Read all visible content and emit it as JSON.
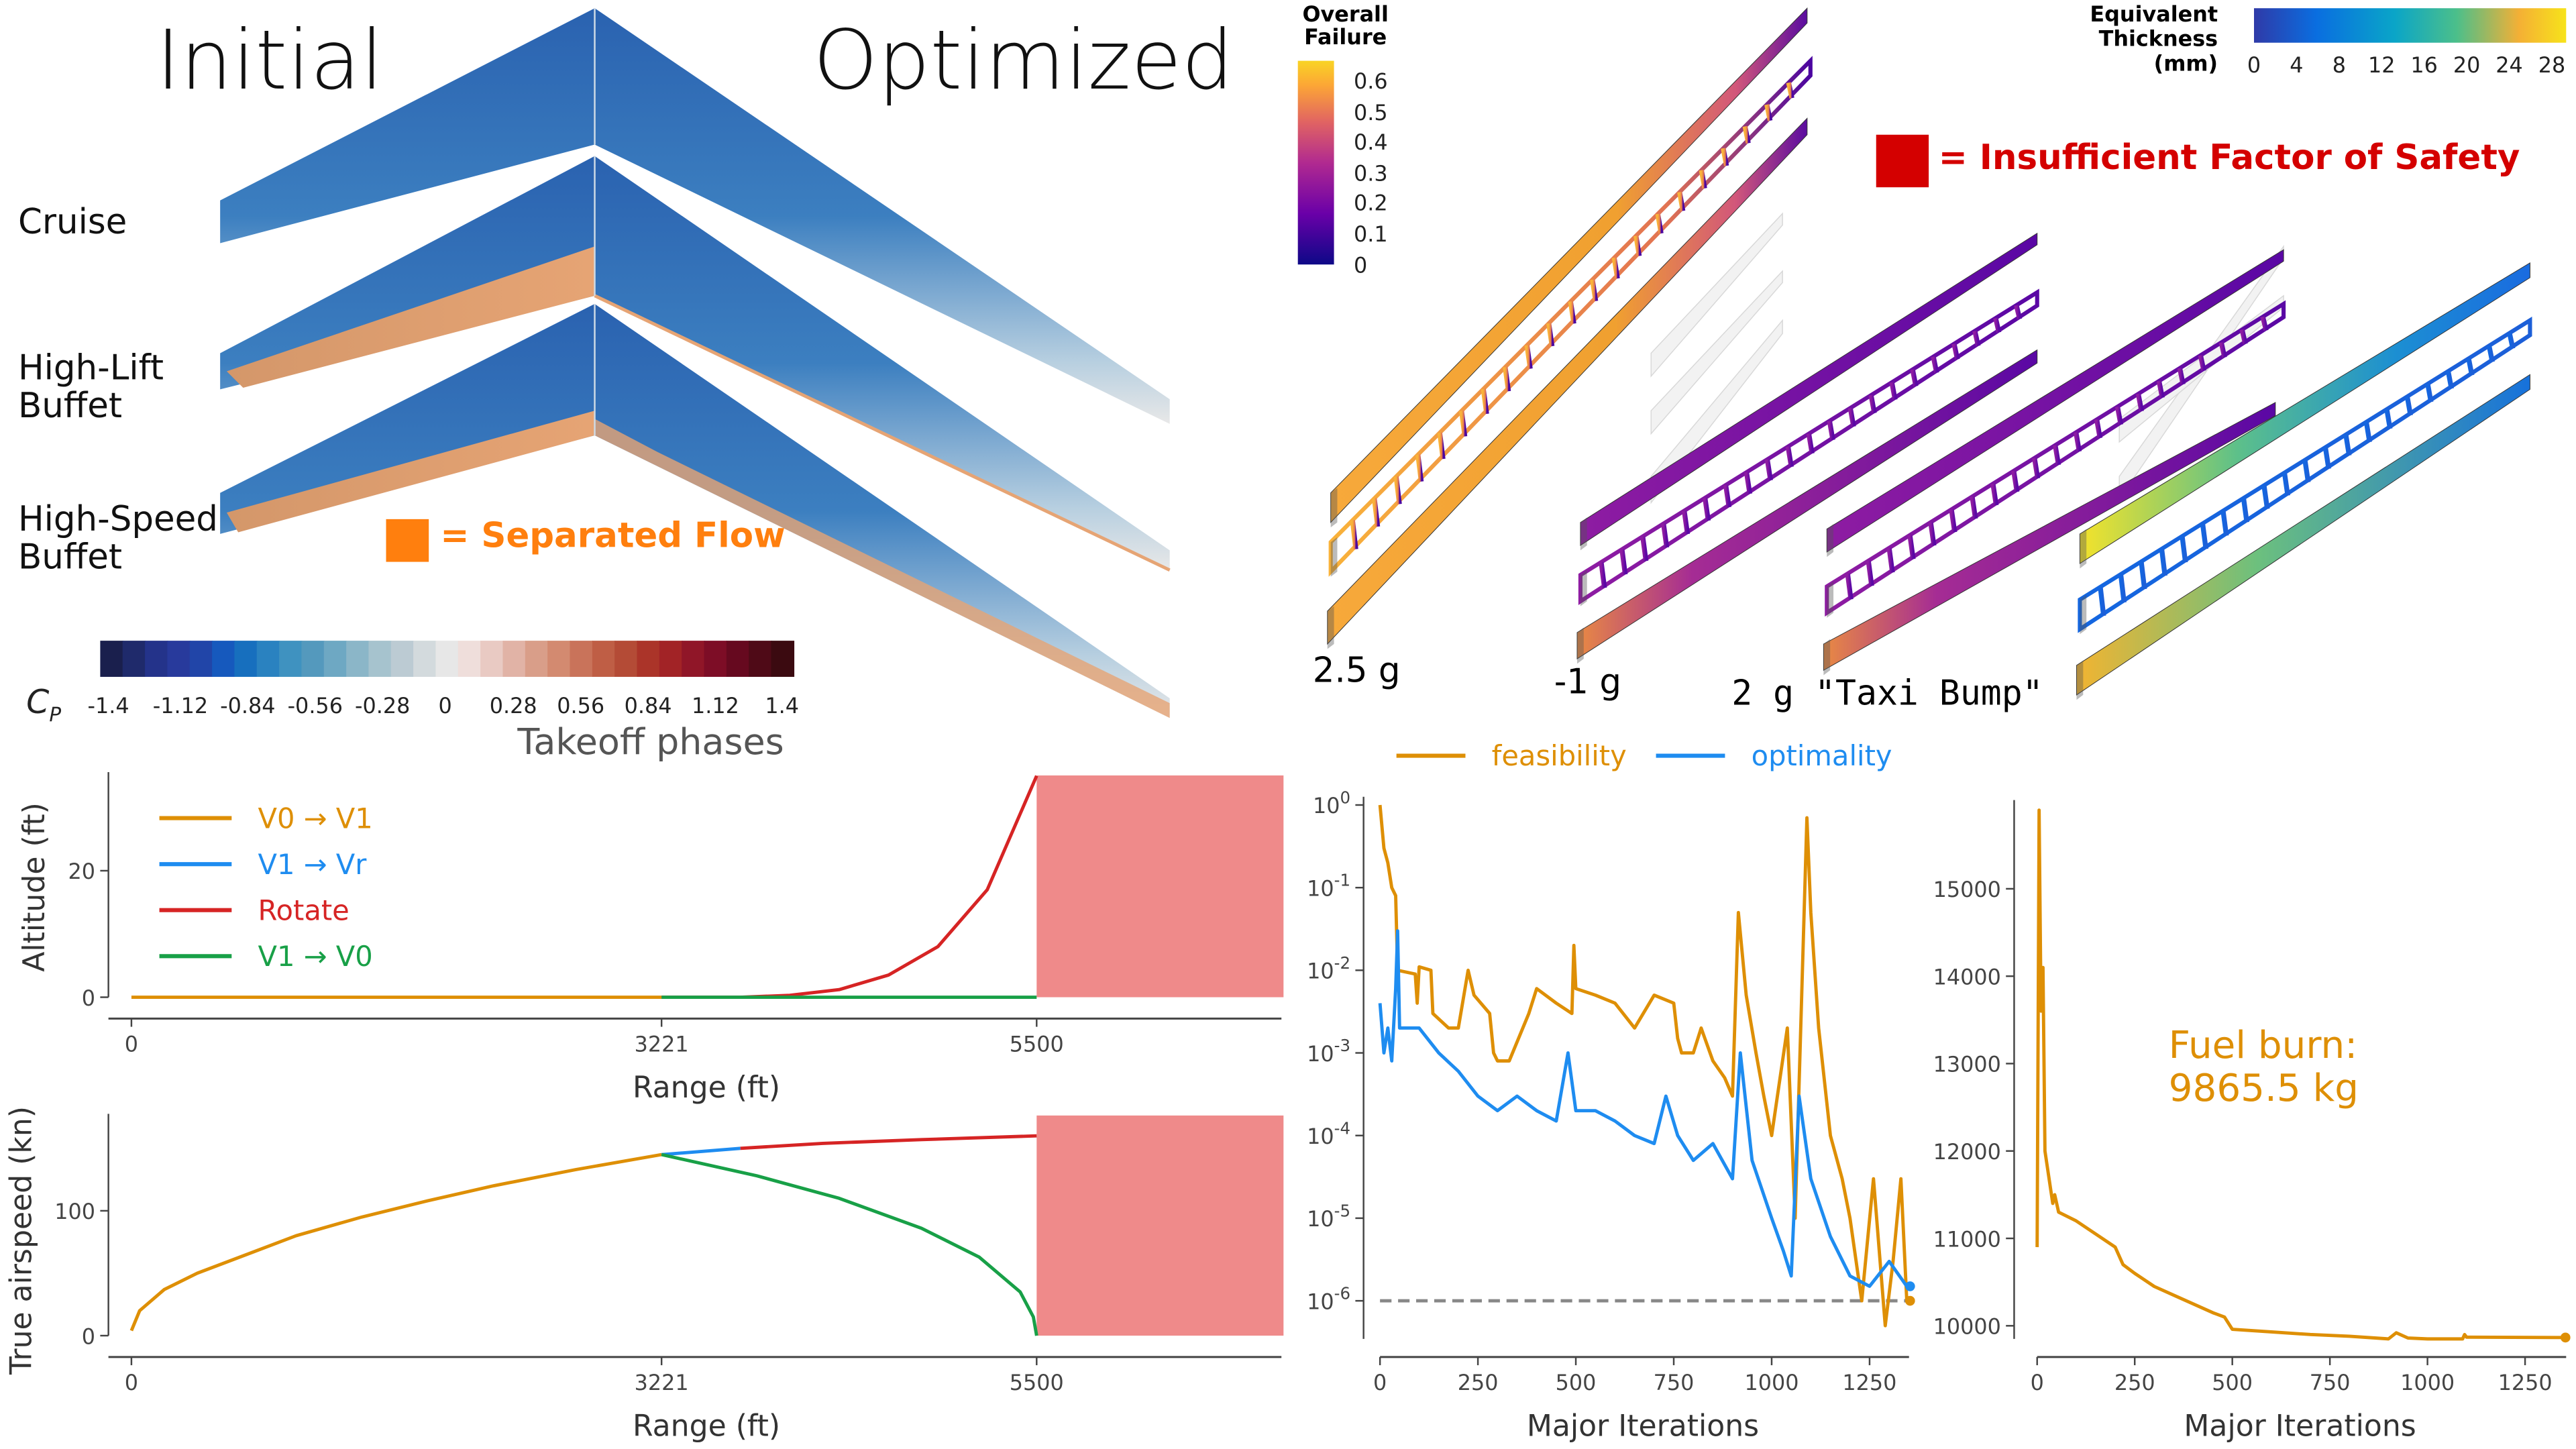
{
  "aero": {
    "title_initial": "Initial",
    "title_optimized": "Optimized",
    "rows": [
      "Cruise",
      "High-Lift\nBuffet",
      "High-Speed\nBuffet"
    ],
    "separated_flow_label": "= Separated Flow",
    "separated_flow_color": "#ff7f0e",
    "cp_symbol": "C",
    "cp_subscript": "P",
    "cp_ticks": [
      "-1.4",
      "-1.12",
      "-0.84",
      "-0.56",
      "-0.28",
      "0",
      "0.28",
      "0.56",
      "0.84",
      "1.12",
      "1.4"
    ],
    "cp_colors": [
      "#1a1f4d",
      "#1f2a6b",
      "#24338a",
      "#283a9c",
      "#2145a8",
      "#1659bd",
      "#176fbe",
      "#2a82c0",
      "#3f92c0",
      "#5499bd",
      "#6ea8c3",
      "#8bb6c8",
      "#a6c3ce",
      "#bccbd3",
      "#d3dadd",
      "#e7e7e7",
      "#efdedb",
      "#e9cac3",
      "#e1b3a6",
      "#d99e89",
      "#d38a70",
      "#c9735a",
      "#bf5e45",
      "#b44b36",
      "#ab3429",
      "#a22326",
      "#901628",
      "#7d0d26",
      "#66091f",
      "#4f0a17",
      "#3b0a10"
    ],
    "takeoff_title": "Takeoff phases"
  },
  "structure": {
    "failure_title": [
      "Overall",
      "Failure"
    ],
    "failure_ticks": [
      "0.6",
      "0.5",
      "0.4",
      "0.3",
      "0.2",
      "0.1",
      "0"
    ],
    "thickness_title": [
      "Equivalent",
      "Thickness",
      "(mm)"
    ],
    "thickness_ticks": [
      "0",
      "4",
      "8",
      "12",
      "16",
      "20",
      "24",
      "28"
    ],
    "insufficient_label": "= Insufficient Factor of Safety",
    "insufficient_color": "#d40000",
    "cases": [
      "2.5 g",
      "-1 g",
      "2 g \"Taxi Bump\""
    ]
  },
  "chart_data": [
    {
      "type": "line",
      "xlabel": "Range (ft)",
      "ylabel": "Altitude (ft)",
      "xticks": [
        0,
        3221,
        5500
      ],
      "yticks": [
        0,
        20
      ],
      "xlim": [
        0,
        7000
      ],
      "ylim": [
        0,
        35
      ],
      "legend": "top-left",
      "shaded_region": {
        "x": [
          5500,
          7000
        ],
        "color": "#ef8a8a"
      },
      "series": [
        {
          "name": "V0 → V1",
          "color": "#de8f05",
          "x": [
            0,
            3221
          ],
          "y": [
            0,
            0
          ]
        },
        {
          "name": "V1 → Vr",
          "color": "#1e8cf0",
          "x": [
            3221,
            3221
          ],
          "y": [
            0,
            0
          ]
        },
        {
          "name": "Rotate",
          "color": "#d62424",
          "x": [
            3221,
            3700,
            4000,
            4300,
            4600,
            4900,
            5200,
            5500
          ],
          "y": [
            0,
            0,
            0.3,
            1.2,
            3.5,
            8,
            17,
            35
          ]
        },
        {
          "name": "V1 → V0",
          "color": "#18a047",
          "x": [
            3221,
            5500
          ],
          "y": [
            0,
            0
          ]
        }
      ]
    },
    {
      "type": "line",
      "xlabel": "Range (ft)",
      "ylabel": "True airspeed (kn)",
      "xticks": [
        0,
        3221,
        5500
      ],
      "yticks": [
        0,
        100
      ],
      "xlim": [
        0,
        7000
      ],
      "ylim": [
        0,
        175
      ],
      "shaded_region": {
        "x": [
          5500,
          7000
        ],
        "color": "#ef8a8a"
      },
      "series": [
        {
          "name": "V0 → V1",
          "color": "#de8f05",
          "x": [
            0,
            50,
            200,
            400,
            700,
            1000,
            1400,
            1800,
            2200,
            2700,
            3221
          ],
          "y": [
            4,
            20,
            37,
            50,
            65,
            80,
            95,
            108,
            120,
            133,
            145
          ]
        },
        {
          "name": "V1 → Vr",
          "color": "#1e8cf0",
          "x": [
            3221,
            3700
          ],
          "y": [
            145,
            150
          ]
        },
        {
          "name": "Rotate",
          "color": "#d62424",
          "x": [
            3700,
            4200,
            4800,
            5500
          ],
          "y": [
            150,
            154,
            157,
            160
          ]
        },
        {
          "name": "V1 → V0",
          "color": "#18a047",
          "x": [
            3221,
            3800,
            4300,
            4800,
            5150,
            5400,
            5480,
            5500
          ],
          "y": [
            145,
            128,
            110,
            86,
            63,
            35,
            15,
            0
          ]
        }
      ]
    },
    {
      "type": "line",
      "xlabel": "Major Iterations",
      "yscale": "log",
      "xticks": [
        0,
        250,
        500,
        750,
        1000,
        1250
      ],
      "yticks": [
        "10^0",
        "10^-1",
        "10^-2",
        "10^-3",
        "10^-4",
        "10^-5",
        "10^-6"
      ],
      "xlim": [
        0,
        1350
      ],
      "ylim": [
        3e-07,
        1.2
      ],
      "legend": "top",
      "reference_line": {
        "y": 1e-06,
        "style": "dashed",
        "color": "#888888"
      },
      "series": [
        {
          "name": "feasibility",
          "color": "#de8f05",
          "x": [
            0,
            10,
            20,
            30,
            40,
            45,
            90,
            95,
            100,
            130,
            135,
            175,
            200,
            225,
            240,
            280,
            290,
            300,
            330,
            380,
            400,
            450,
            490,
            495,
            500,
            550,
            600,
            650,
            700,
            750,
            760,
            770,
            800,
            820,
            850,
            880,
            900,
            915,
            935,
            960,
            980,
            1000,
            1040,
            1060,
            1090,
            1100,
            1120,
            1150,
            1180,
            1200,
            1230,
            1260,
            1290,
            1310,
            1330,
            1345
          ],
          "y": [
            1,
            0.3,
            0.2,
            0.1,
            0.08,
            0.01,
            0.009,
            0.004,
            0.011,
            0.01,
            0.003,
            0.002,
            0.002,
            0.01,
            0.005,
            0.003,
            0.001,
            0.0008,
            0.0008,
            0.003,
            0.006,
            0.004,
            0.003,
            0.02,
            0.006,
            0.005,
            0.004,
            0.002,
            0.005,
            0.004,
            0.0015,
            0.001,
            0.001,
            0.002,
            0.0008,
            0.0005,
            0.0003,
            0.05,
            0.005,
            0.001,
            0.0003,
            0.0001,
            0.002,
            1e-05,
            0.7,
            0.05,
            0.002,
            0.0001,
            3e-05,
            1e-05,
            1e-06,
            3e-05,
            5e-07,
            3e-06,
            3e-05,
            1e-06
          ]
        },
        {
          "name": "optimality",
          "color": "#1e8cf0",
          "x": [
            0,
            10,
            20,
            30,
            40,
            45,
            50,
            100,
            150,
            200,
            250,
            300,
            350,
            400,
            450,
            480,
            500,
            550,
            600,
            650,
            700,
            730,
            760,
            800,
            850,
            900,
            920,
            950,
            1000,
            1030,
            1050,
            1070,
            1100,
            1150,
            1200,
            1250,
            1300,
            1345
          ],
          "y": [
            0.004,
            0.001,
            0.002,
            0.0008,
            0.006,
            0.03,
            0.002,
            0.002,
            0.001,
            0.0006,
            0.0003,
            0.0002,
            0.0003,
            0.0002,
            0.00015,
            0.001,
            0.0002,
            0.0002,
            0.00015,
            0.0001,
            8e-05,
            0.0003,
            0.0001,
            5e-05,
            8e-05,
            3e-05,
            0.001,
            5e-05,
            1e-05,
            4e-06,
            2e-06,
            0.0003,
            3e-05,
            6e-06,
            2e-06,
            1.5e-06,
            3e-06,
            1.5e-06
          ]
        }
      ]
    },
    {
      "type": "line",
      "xlabel": "Major Iterations",
      "xticks": [
        0,
        250,
        500,
        750,
        1000,
        1250
      ],
      "yticks": [
        10000,
        11000,
        12000,
        13000,
        14000,
        15000
      ],
      "xlim": [
        0,
        1350
      ],
      "ylim": [
        9800,
        15900
      ],
      "annotation": [
        "Fuel burn:",
        "9865.5 kg"
      ],
      "series": [
        {
          "color": "#de8f05",
          "x": [
            0,
            5,
            10,
            15,
            20,
            30,
            40,
            45,
            55,
            100,
            150,
            200,
            220,
            250,
            300,
            350,
            400,
            450,
            480,
            500,
            600,
            700,
            800,
            900,
            920,
            950,
            1000,
            1090,
            1095,
            1100,
            1345
          ],
          "y": [
            10900,
            15900,
            13600,
            14100,
            12000,
            11700,
            11400,
            11500,
            11300,
            11200,
            11050,
            10900,
            10700,
            10600,
            10450,
            10350,
            10250,
            10150,
            10100,
            9960,
            9930,
            9900,
            9880,
            9850,
            9920,
            9860,
            9850,
            9850,
            9900,
            9870,
            9865.5
          ]
        }
      ]
    }
  ]
}
